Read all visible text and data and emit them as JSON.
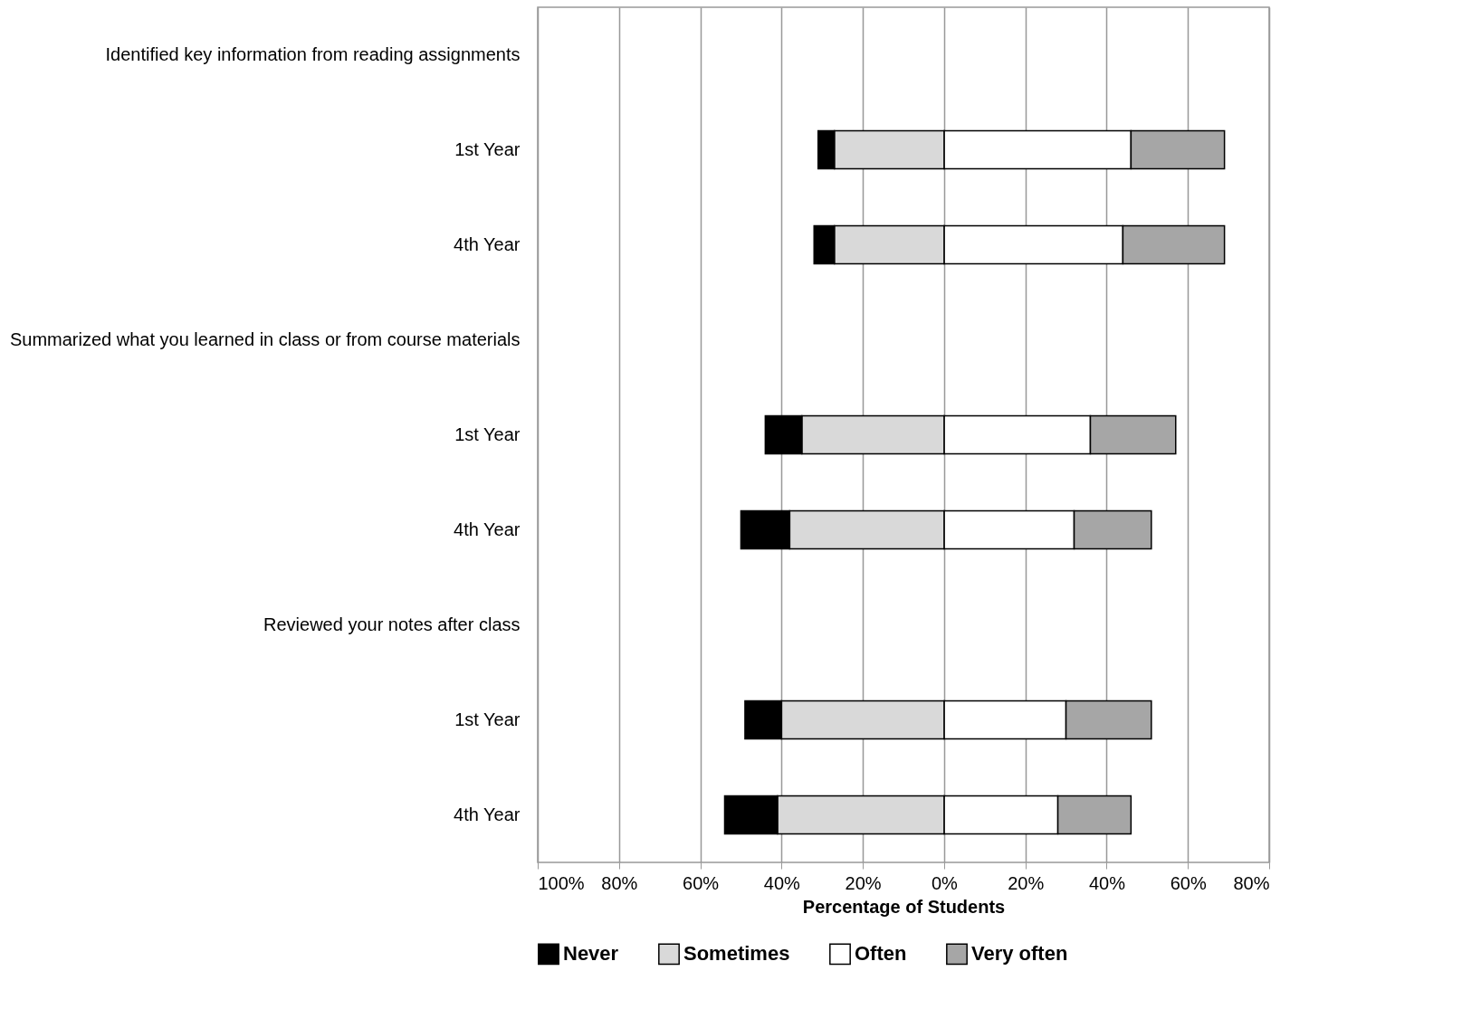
{
  "chart_data": {
    "type": "bar",
    "orientation": "horizontal",
    "stacked": true,
    "xlabel": "Percentage of Students",
    "categories": [
      "Identified key information from reading assignments",
      "1st Year",
      "4th Year",
      "Summarized what you learned in class or from course materials",
      "1st Year",
      "4th Year",
      "Reviewed your notes after class",
      "1st Year",
      "4th Year"
    ],
    "series": [
      {
        "name": "Never",
        "color": "#000000",
        "values": [
          null,
          -4,
          -5,
          null,
          -9,
          -12,
          null,
          -9,
          -13
        ]
      },
      {
        "name": "Sometimes",
        "color": "#d9d9d9",
        "values": [
          null,
          -27,
          -27,
          null,
          -35,
          -38,
          null,
          -40,
          -41
        ]
      },
      {
        "name": "Often",
        "color": "#ffffff",
        "values": [
          null,
          46,
          44,
          null,
          36,
          32,
          null,
          30,
          28
        ]
      },
      {
        "name": "Very often",
        "color": "#a6a6a6",
        "values": [
          null,
          23,
          25,
          null,
          21,
          19,
          null,
          21,
          18
        ]
      }
    ],
    "xlim": [
      -100,
      80
    ],
    "xticks": [
      {
        "value": -100,
        "label": "100%"
      },
      {
        "value": -80,
        "label": "80%"
      },
      {
        "value": -60,
        "label": "60%"
      },
      {
        "value": -40,
        "label": "40%"
      },
      {
        "value": -20,
        "label": "20%"
      },
      {
        "value": 0,
        "label": "0%"
      },
      {
        "value": 20,
        "label": "20%"
      },
      {
        "value": 40,
        "label": "40%"
      },
      {
        "value": 60,
        "label": "60%"
      },
      {
        "value": 80,
        "label": "80%"
      }
    ],
    "grid": "x",
    "legend": "bottom"
  }
}
